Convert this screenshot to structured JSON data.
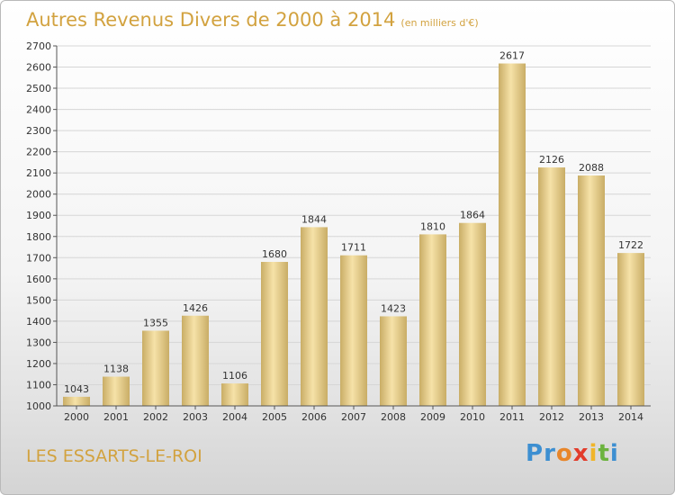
{
  "title": "Autres Revenus Divers de 2000 à 2014",
  "subtitle": "(en milliers d'€)",
  "city": "LES ESSARTS-LE-ROI",
  "logo": {
    "letters": [
      "P",
      "r",
      "o",
      "x",
      "i",
      "t",
      "i"
    ],
    "colors": [
      "#3d8fd1",
      "#3d8fd1",
      "#e8862a",
      "#e23c2b",
      "#f0b52a",
      "#6cb33f",
      "#3d8fd1"
    ]
  },
  "colors": {
    "title": "#d2a23f",
    "bar_light": "#f6e2a8",
    "bar_dark": "#c9ad66",
    "grid": "#d6d6d6"
  },
  "chart_data": {
    "type": "bar",
    "title": "Autres Revenus Divers de 2000 à 2014",
    "subtitle": "(en milliers d'€)",
    "categories": [
      "2000",
      "2001",
      "2002",
      "2003",
      "2004",
      "2005",
      "2006",
      "2007",
      "2008",
      "2009",
      "2010",
      "2011",
      "2012",
      "2013",
      "2014"
    ],
    "values": [
      1043,
      1138,
      1355,
      1426,
      1106,
      1680,
      1844,
      1711,
      1423,
      1810,
      1864,
      2617,
      2126,
      2088,
      1722
    ],
    "ylim": [
      1000,
      2700
    ],
    "yticks": [
      1000,
      1100,
      1200,
      1300,
      1400,
      1500,
      1600,
      1700,
      1800,
      1900,
      2000,
      2100,
      2200,
      2300,
      2400,
      2500,
      2600,
      2700
    ],
    "grid": true,
    "legend": "none"
  }
}
